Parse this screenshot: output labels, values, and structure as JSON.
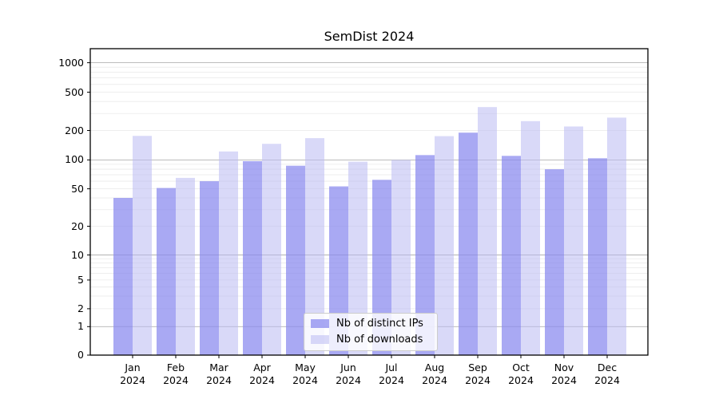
{
  "figure": {
    "title": "SemDist 2024"
  },
  "chart_data": {
    "type": "bar",
    "title": "SemDist 2024",
    "categories": [
      "Jan",
      "Feb",
      "Mar",
      "Apr",
      "May",
      "Jun",
      "Jul",
      "Aug",
      "Sep",
      "Oct",
      "Nov",
      "Dec"
    ],
    "category_year": "2024",
    "series": [
      {
        "name": "Nb of distinct IPs",
        "fill": "#8888ee",
        "opacity": 0.72,
        "values": [
          40,
          51,
          60,
          97,
          87,
          53,
          62,
          112,
          190,
          110,
          80,
          104
        ]
      },
      {
        "name": "Nb of downloads",
        "fill": "#b9b9f2",
        "opacity": 0.55,
        "values": [
          176,
          65,
          122,
          146,
          167,
          96,
          100,
          175,
          350,
          250,
          220,
          272
        ]
      }
    ],
    "yscale": "symlog",
    "y_ticks": [
      0,
      1,
      2,
      5,
      10,
      20,
      50,
      100,
      200,
      500,
      1000
    ],
    "ylim": [
      0,
      1380
    ],
    "grid": "on",
    "legend_position": "lower center",
    "colors": {
      "major_grid": "#b3b3b3",
      "minor_grid": "#e9e9e9",
      "axis": "#000000"
    }
  }
}
